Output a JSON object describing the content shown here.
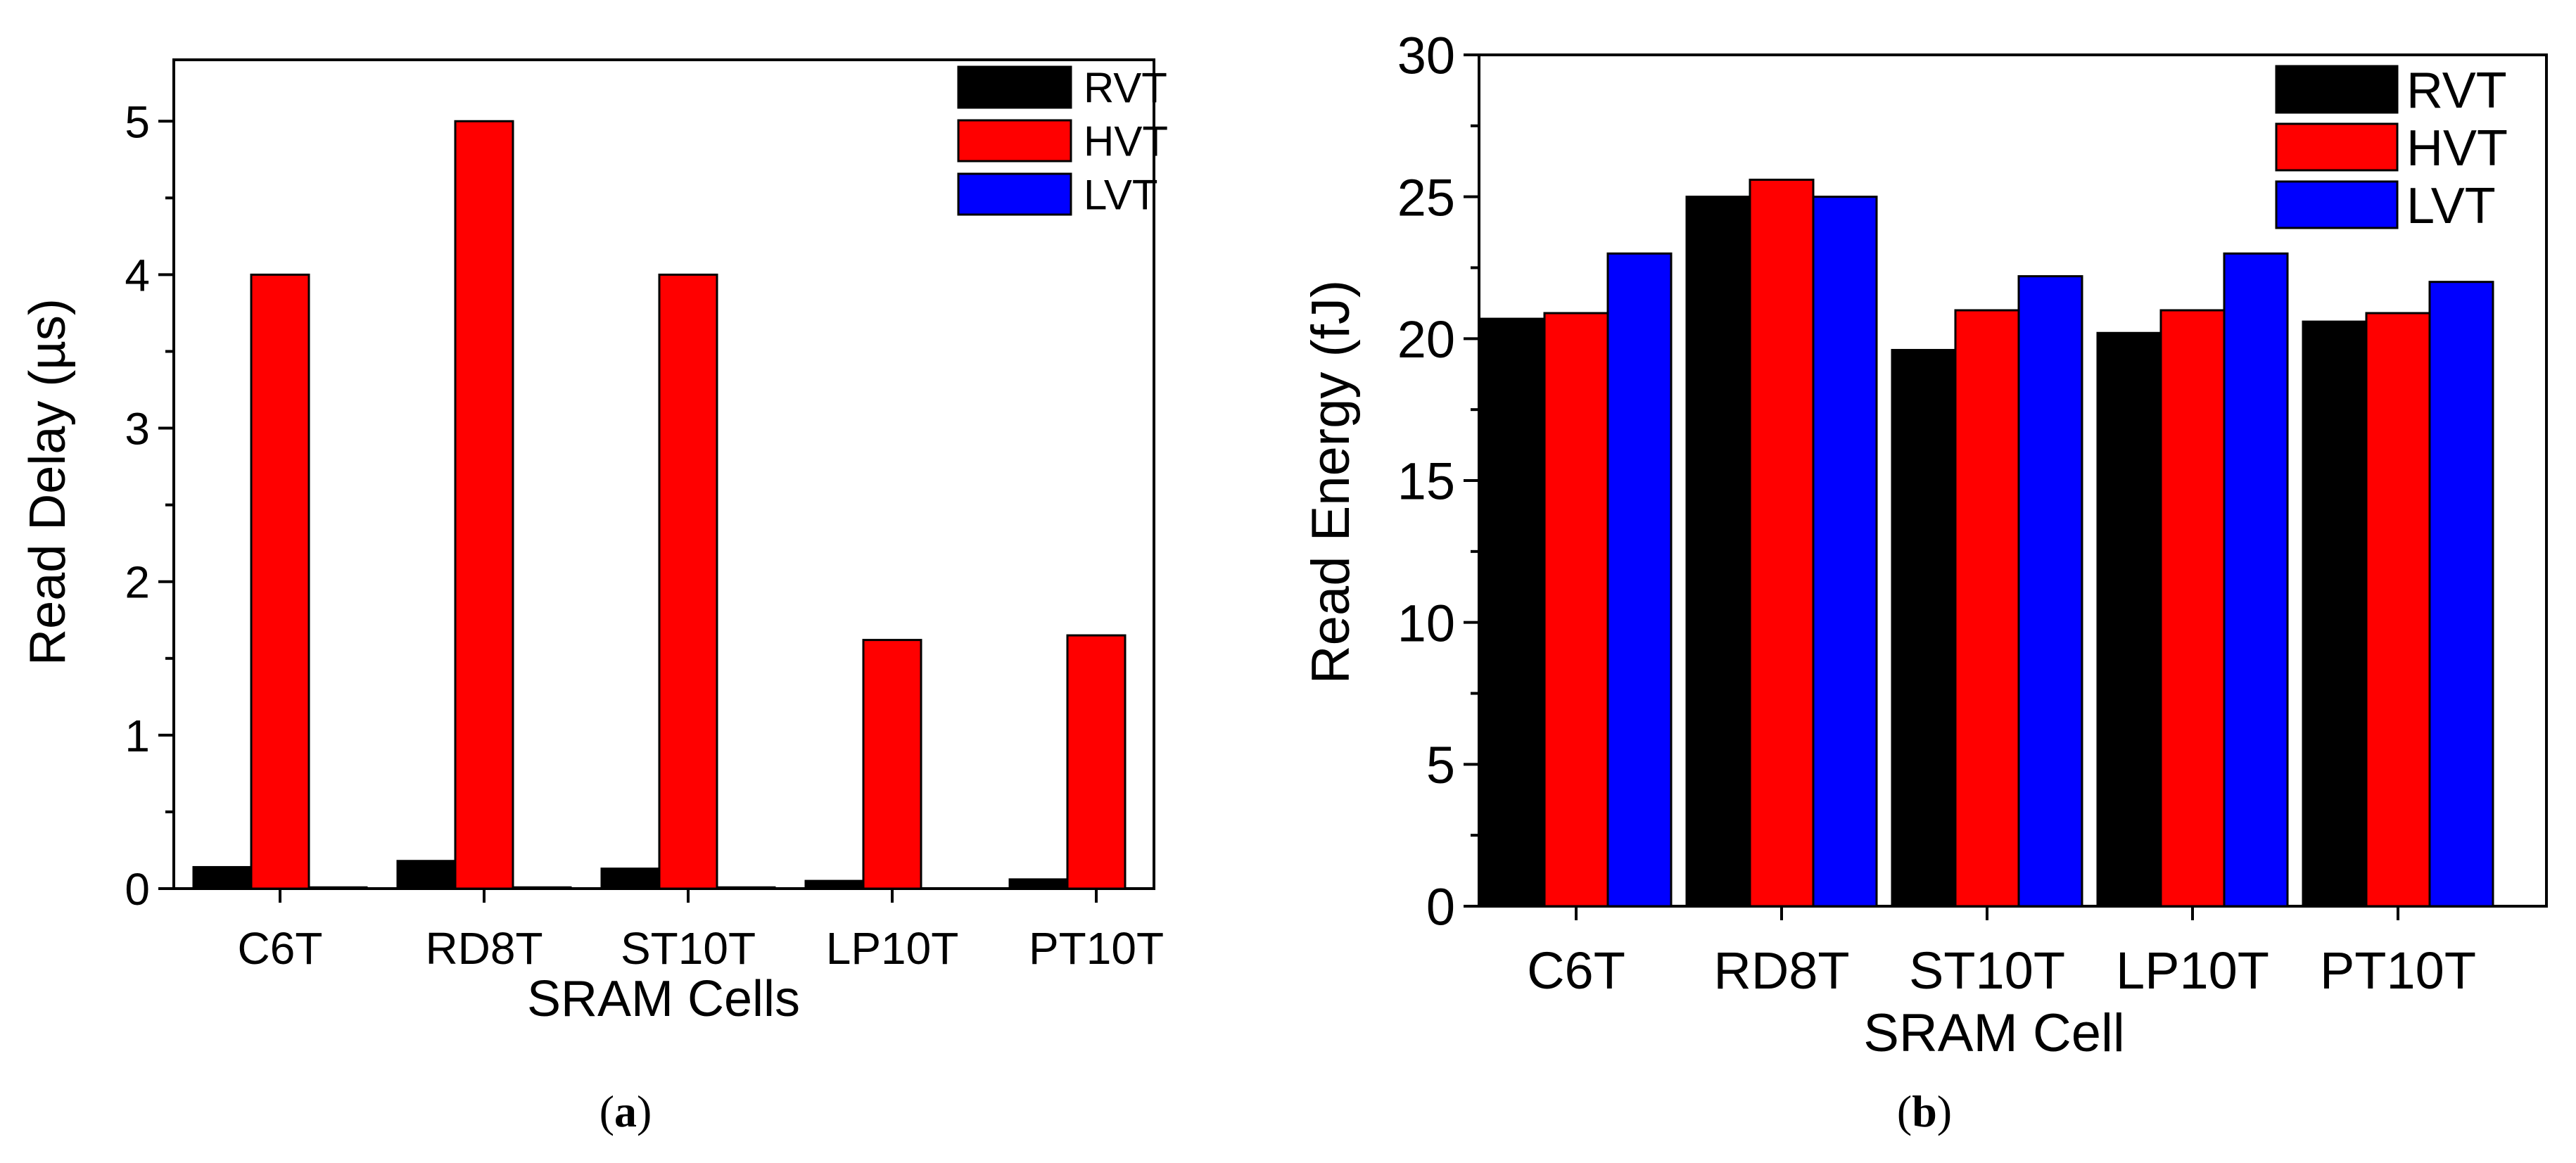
{
  "colors": {
    "RVT": "#000000",
    "HVT": "#ff0000",
    "LVT": "#0000ff"
  },
  "chart_data": [
    {
      "type": "bar",
      "panel_label": "a",
      "title": "",
      "xlabel": "SRAM Cells",
      "ylabel": "Read Delay (µs)",
      "ylim": [
        0,
        5.4
      ],
      "yticks": [
        "0",
        "1",
        "2",
        "3",
        "4",
        "5"
      ],
      "categories": [
        "C6T",
        "RD8T",
        "ST10T",
        "LP10T",
        "PT10T"
      ],
      "legend_position": "top-right",
      "grid": false,
      "series": [
        {
          "name": "RVT",
          "values": [
            0.14,
            0.18,
            0.13,
            0.05,
            0.06
          ]
        },
        {
          "name": "HVT",
          "values": [
            4.0,
            5.0,
            4.0,
            1.62,
            1.65
          ]
        },
        {
          "name": "LVT",
          "values": [
            0.008,
            0.008,
            0.008,
            0.0,
            0.0
          ]
        }
      ]
    },
    {
      "type": "bar",
      "panel_label": "b",
      "title": "",
      "xlabel": "SRAM Cell",
      "ylabel": "Read Energy (fJ)",
      "ylim": [
        0,
        30
      ],
      "yticks": [
        "0",
        "5",
        "10",
        "15",
        "20",
        "25",
        "30"
      ],
      "categories": [
        "C6T",
        "RD8T",
        "ST10T",
        "LP10T",
        "PT10T"
      ],
      "legend_position": "top-right",
      "grid": false,
      "series": [
        {
          "name": "RVT",
          "values": [
            20.7,
            25.0,
            19.6,
            20.2,
            20.6
          ]
        },
        {
          "name": "HVT",
          "values": [
            20.9,
            25.6,
            21.0,
            21.0,
            20.9
          ]
        },
        {
          "name": "LVT",
          "values": [
            23.0,
            25.0,
            22.2,
            23.0,
            22.0
          ]
        }
      ]
    }
  ]
}
